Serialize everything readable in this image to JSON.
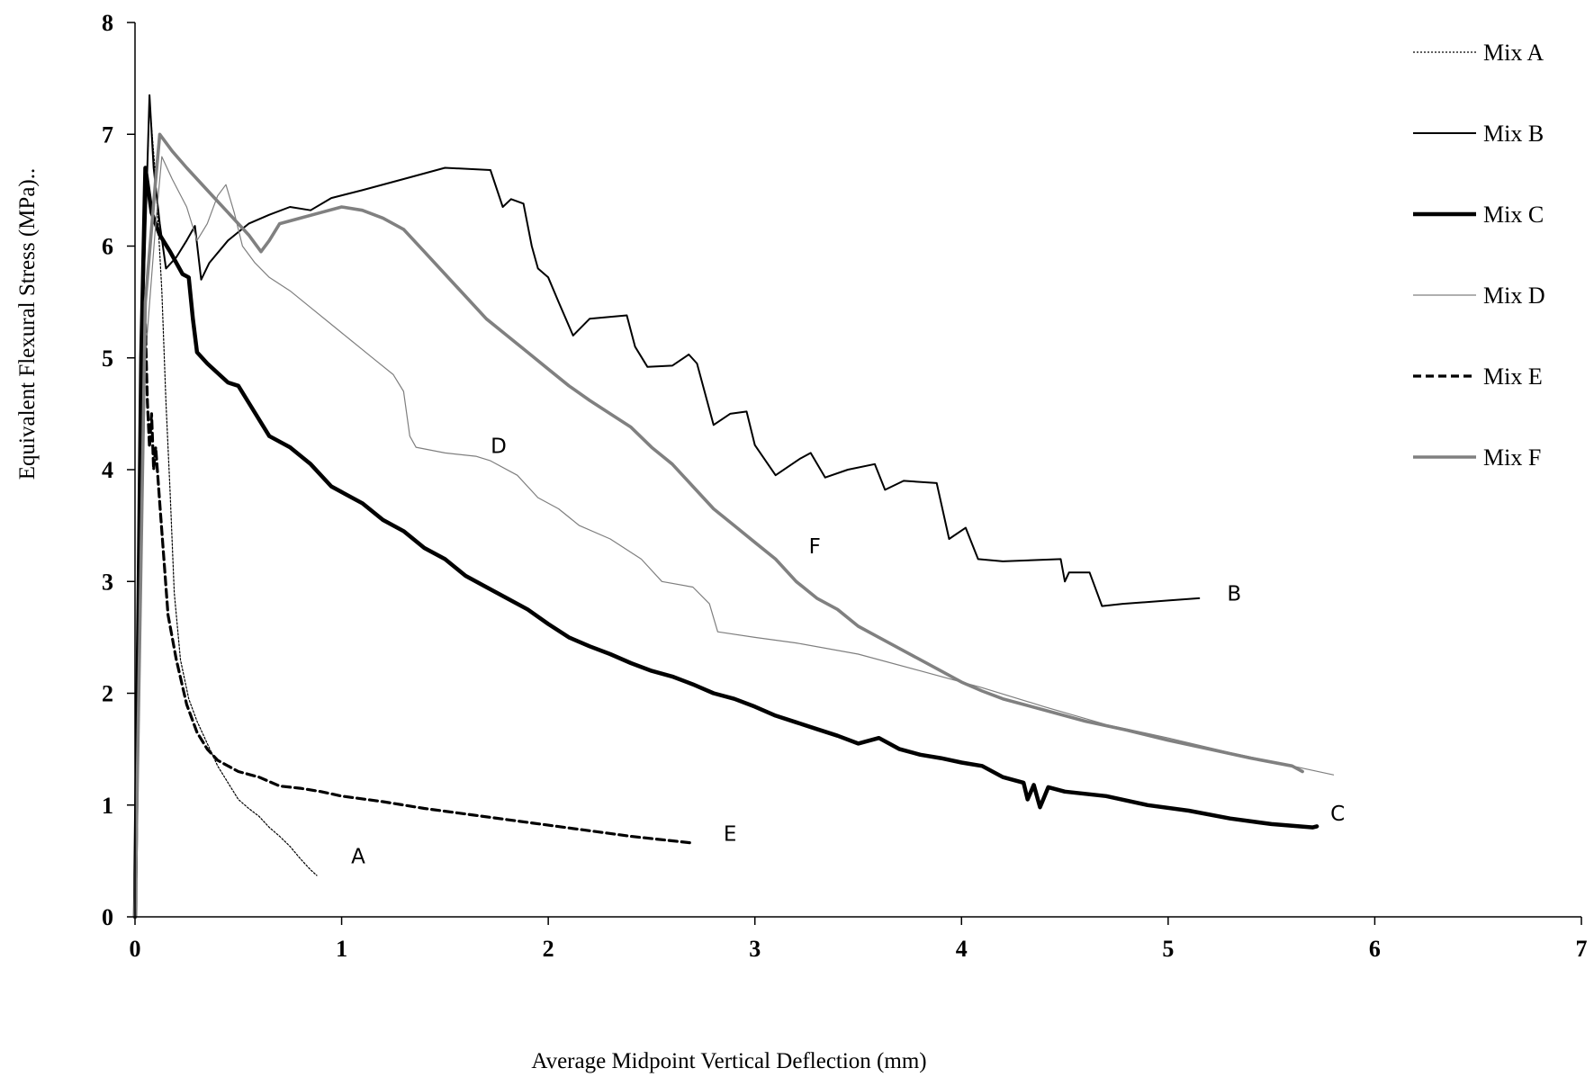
{
  "chart_data": {
    "type": "line",
    "title": "",
    "xlabel": "Average Midpoint Vertical Deflection (mm)",
    "ylabel": "Equivalent Flexural Stress (MPa)..",
    "xlim": [
      0,
      7
    ],
    "ylim": [
      0,
      8
    ],
    "xticks": [
      "0",
      "1",
      "2",
      "3",
      "4",
      "5",
      "6",
      "7"
    ],
    "yticks": [
      "0",
      "1",
      "2",
      "3",
      "4",
      "5",
      "6",
      "7",
      "8"
    ],
    "grid": false,
    "legend_position": "right",
    "series": [
      {
        "name": "Mix A",
        "label": "A",
        "label_at": [
          1.08,
          0.48
        ],
        "style": "dotted",
        "color": "#000000",
        "points": [
          [
            0,
            0
          ],
          [
            0.04,
            5.5
          ],
          [
            0.07,
            7.3
          ],
          [
            0.1,
            6.6
          ],
          [
            0.13,
            5.6
          ],
          [
            0.15,
            4.6
          ],
          [
            0.17,
            3.8
          ],
          [
            0.19,
            2.9
          ],
          [
            0.22,
            2.3
          ],
          [
            0.26,
            1.95
          ],
          [
            0.3,
            1.75
          ],
          [
            0.35,
            1.55
          ],
          [
            0.4,
            1.35
          ],
          [
            0.45,
            1.2
          ],
          [
            0.5,
            1.05
          ],
          [
            0.55,
            0.97
          ],
          [
            0.6,
            0.9
          ],
          [
            0.65,
            0.8
          ],
          [
            0.7,
            0.72
          ],
          [
            0.75,
            0.63
          ],
          [
            0.8,
            0.52
          ],
          [
            0.85,
            0.42
          ],
          [
            0.88,
            0.37
          ]
        ]
      },
      {
        "name": "Mix B",
        "label": "B",
        "label_at": [
          5.32,
          2.83
        ],
        "style": "solid",
        "color": "#000000",
        "points": [
          [
            0,
            0
          ],
          [
            0.04,
            5.5
          ],
          [
            0.07,
            7.35
          ],
          [
            0.09,
            6.7
          ],
          [
            0.12,
            6.2
          ],
          [
            0.15,
            5.8
          ],
          [
            0.2,
            5.9
          ],
          [
            0.25,
            6.05
          ],
          [
            0.29,
            6.18
          ],
          [
            0.32,
            5.7
          ],
          [
            0.36,
            5.85
          ],
          [
            0.45,
            6.05
          ],
          [
            0.55,
            6.2
          ],
          [
            0.65,
            6.28
          ],
          [
            0.75,
            6.35
          ],
          [
            0.85,
            6.32
          ],
          [
            0.95,
            6.43
          ],
          [
            1.1,
            6.5
          ],
          [
            1.3,
            6.6
          ],
          [
            1.5,
            6.7
          ],
          [
            1.72,
            6.68
          ],
          [
            1.78,
            6.35
          ],
          [
            1.82,
            6.42
          ],
          [
            1.88,
            6.38
          ],
          [
            1.92,
            6.0
          ],
          [
            1.95,
            5.8
          ],
          [
            2.0,
            5.72
          ],
          [
            2.05,
            5.5
          ],
          [
            2.12,
            5.2
          ],
          [
            2.2,
            5.35
          ],
          [
            2.38,
            5.38
          ],
          [
            2.42,
            5.1
          ],
          [
            2.48,
            4.92
          ],
          [
            2.6,
            4.93
          ],
          [
            2.68,
            5.03
          ],
          [
            2.72,
            4.95
          ],
          [
            2.8,
            4.4
          ],
          [
            2.88,
            4.5
          ],
          [
            2.96,
            4.52
          ],
          [
            3.0,
            4.22
          ],
          [
            3.1,
            3.95
          ],
          [
            3.22,
            4.1
          ],
          [
            3.27,
            4.15
          ],
          [
            3.34,
            3.93
          ],
          [
            3.45,
            4.0
          ],
          [
            3.58,
            4.05
          ],
          [
            3.63,
            3.82
          ],
          [
            3.72,
            3.9
          ],
          [
            3.88,
            3.88
          ],
          [
            3.94,
            3.38
          ],
          [
            4.02,
            3.48
          ],
          [
            4.08,
            3.2
          ],
          [
            4.2,
            3.18
          ],
          [
            4.48,
            3.2
          ],
          [
            4.5,
            3.0
          ],
          [
            4.52,
            3.08
          ],
          [
            4.62,
            3.08
          ],
          [
            4.68,
            2.78
          ],
          [
            4.78,
            2.8
          ],
          [
            5.0,
            2.83
          ],
          [
            5.15,
            2.85
          ]
        ]
      },
      {
        "name": "Mix C",
        "label": "C",
        "label_at": [
          5.82,
          0.86
        ],
        "style": "solid-thick",
        "color": "#000000",
        "points": [
          [
            0,
            0
          ],
          [
            0.03,
            5.0
          ],
          [
            0.05,
            6.7
          ],
          [
            0.08,
            6.3
          ],
          [
            0.12,
            6.1
          ],
          [
            0.17,
            5.95
          ],
          [
            0.23,
            5.75
          ],
          [
            0.26,
            5.72
          ],
          [
            0.28,
            5.35
          ],
          [
            0.3,
            5.05
          ],
          [
            0.35,
            4.95
          ],
          [
            0.45,
            4.78
          ],
          [
            0.5,
            4.75
          ],
          [
            0.55,
            4.6
          ],
          [
            0.65,
            4.3
          ],
          [
            0.75,
            4.2
          ],
          [
            0.85,
            4.05
          ],
          [
            0.95,
            3.85
          ],
          [
            1.0,
            3.8
          ],
          [
            1.1,
            3.7
          ],
          [
            1.2,
            3.55
          ],
          [
            1.3,
            3.45
          ],
          [
            1.4,
            3.3
          ],
          [
            1.5,
            3.2
          ],
          [
            1.6,
            3.05
          ],
          [
            1.7,
            2.95
          ],
          [
            1.8,
            2.85
          ],
          [
            1.9,
            2.75
          ],
          [
            2.0,
            2.62
          ],
          [
            2.1,
            2.5
          ],
          [
            2.2,
            2.42
          ],
          [
            2.3,
            2.35
          ],
          [
            2.4,
            2.27
          ],
          [
            2.5,
            2.2
          ],
          [
            2.6,
            2.15
          ],
          [
            2.7,
            2.08
          ],
          [
            2.8,
            2.0
          ],
          [
            2.9,
            1.95
          ],
          [
            3.0,
            1.88
          ],
          [
            3.1,
            1.8
          ],
          [
            3.2,
            1.74
          ],
          [
            3.3,
            1.68
          ],
          [
            3.4,
            1.62
          ],
          [
            3.5,
            1.55
          ],
          [
            3.6,
            1.6
          ],
          [
            3.7,
            1.5
          ],
          [
            3.8,
            1.45
          ],
          [
            3.9,
            1.42
          ],
          [
            4.0,
            1.38
          ],
          [
            4.1,
            1.35
          ],
          [
            4.2,
            1.25
          ],
          [
            4.3,
            1.2
          ],
          [
            4.32,
            1.05
          ],
          [
            4.35,
            1.18
          ],
          [
            4.38,
            0.98
          ],
          [
            4.42,
            1.16
          ],
          [
            4.5,
            1.12
          ],
          [
            4.7,
            1.08
          ],
          [
            4.9,
            1.0
          ],
          [
            5.1,
            0.95
          ],
          [
            5.3,
            0.88
          ],
          [
            5.5,
            0.83
          ],
          [
            5.7,
            0.8
          ],
          [
            5.72,
            0.81
          ]
        ]
      },
      {
        "name": "Mix D",
        "label": "D",
        "label_at": [
          1.76,
          4.15
        ],
        "style": "solid-thin",
        "color": "#7f7f7f",
        "points": [
          [
            0,
            0
          ],
          [
            0.05,
            5.0
          ],
          [
            0.1,
            6.2
          ],
          [
            0.13,
            6.8
          ],
          [
            0.18,
            6.6
          ],
          [
            0.25,
            6.35
          ],
          [
            0.3,
            6.05
          ],
          [
            0.35,
            6.2
          ],
          [
            0.4,
            6.45
          ],
          [
            0.44,
            6.55
          ],
          [
            0.48,
            6.3
          ],
          [
            0.52,
            6.0
          ],
          [
            0.58,
            5.85
          ],
          [
            0.65,
            5.72
          ],
          [
            0.75,
            5.6
          ],
          [
            0.85,
            5.45
          ],
          [
            0.95,
            5.3
          ],
          [
            1.05,
            5.15
          ],
          [
            1.15,
            5.0
          ],
          [
            1.25,
            4.85
          ],
          [
            1.3,
            4.7
          ],
          [
            1.33,
            4.3
          ],
          [
            1.36,
            4.2
          ],
          [
            1.5,
            4.15
          ],
          [
            1.65,
            4.12
          ],
          [
            1.72,
            4.08
          ],
          [
            1.85,
            3.95
          ],
          [
            1.95,
            3.75
          ],
          [
            2.05,
            3.65
          ],
          [
            2.15,
            3.5
          ],
          [
            2.3,
            3.38
          ],
          [
            2.45,
            3.2
          ],
          [
            2.55,
            3.0
          ],
          [
            2.7,
            2.95
          ],
          [
            2.78,
            2.8
          ],
          [
            2.82,
            2.55
          ],
          [
            3.0,
            2.5
          ],
          [
            3.2,
            2.45
          ],
          [
            3.5,
            2.35
          ],
          [
            3.8,
            2.2
          ],
          [
            4.1,
            2.05
          ],
          [
            4.4,
            1.88
          ],
          [
            4.7,
            1.72
          ],
          [
            5.0,
            1.6
          ],
          [
            5.3,
            1.47
          ],
          [
            5.55,
            1.37
          ],
          [
            5.8,
            1.27
          ]
        ]
      },
      {
        "name": "Mix E",
        "label": "E",
        "label_at": [
          2.88,
          0.68
        ],
        "style": "dashed",
        "color": "#000000",
        "points": [
          [
            0,
            0
          ],
          [
            0.03,
            4.2
          ],
          [
            0.05,
            5.3
          ],
          [
            0.06,
            4.6
          ],
          [
            0.07,
            4.2
          ],
          [
            0.08,
            4.5
          ],
          [
            0.09,
            4.0
          ],
          [
            0.1,
            4.2
          ],
          [
            0.12,
            3.7
          ],
          [
            0.14,
            3.2
          ],
          [
            0.16,
            2.7
          ],
          [
            0.2,
            2.3
          ],
          [
            0.25,
            1.9
          ],
          [
            0.3,
            1.65
          ],
          [
            0.35,
            1.5
          ],
          [
            0.4,
            1.4
          ],
          [
            0.5,
            1.3
          ],
          [
            0.6,
            1.25
          ],
          [
            0.7,
            1.17
          ],
          [
            0.8,
            1.15
          ],
          [
            0.9,
            1.12
          ],
          [
            1.0,
            1.08
          ],
          [
            1.2,
            1.03
          ],
          [
            1.4,
            0.97
          ],
          [
            1.6,
            0.92
          ],
          [
            1.8,
            0.87
          ],
          [
            2.0,
            0.82
          ],
          [
            2.2,
            0.77
          ],
          [
            2.4,
            0.72
          ],
          [
            2.6,
            0.68
          ],
          [
            2.7,
            0.66
          ]
        ]
      },
      {
        "name": "Mix F",
        "label": "F",
        "label_at": [
          3.29,
          3.25
        ],
        "style": "solid-medium",
        "color": "#808080",
        "points": [
          [
            0,
            0
          ],
          [
            0.05,
            5.5
          ],
          [
            0.1,
            6.6
          ],
          [
            0.12,
            7.0
          ],
          [
            0.18,
            6.85
          ],
          [
            0.25,
            6.7
          ],
          [
            0.35,
            6.5
          ],
          [
            0.45,
            6.3
          ],
          [
            0.55,
            6.1
          ],
          [
            0.61,
            5.95
          ],
          [
            0.65,
            6.05
          ],
          [
            0.7,
            6.2
          ],
          [
            0.8,
            6.25
          ],
          [
            0.9,
            6.3
          ],
          [
            1.0,
            6.35
          ],
          [
            1.1,
            6.32
          ],
          [
            1.2,
            6.25
          ],
          [
            1.3,
            6.15
          ],
          [
            1.4,
            5.95
          ],
          [
            1.5,
            5.75
          ],
          [
            1.6,
            5.55
          ],
          [
            1.7,
            5.35
          ],
          [
            1.8,
            5.2
          ],
          [
            1.9,
            5.05
          ],
          [
            2.0,
            4.9
          ],
          [
            2.1,
            4.75
          ],
          [
            2.2,
            4.62
          ],
          [
            2.3,
            4.5
          ],
          [
            2.4,
            4.38
          ],
          [
            2.5,
            4.2
          ],
          [
            2.6,
            4.05
          ],
          [
            2.7,
            3.85
          ],
          [
            2.8,
            3.65
          ],
          [
            2.9,
            3.5
          ],
          [
            3.0,
            3.35
          ],
          [
            3.1,
            3.2
          ],
          [
            3.2,
            3.0
          ],
          [
            3.3,
            2.85
          ],
          [
            3.4,
            2.75
          ],
          [
            3.5,
            2.6
          ],
          [
            3.6,
            2.5
          ],
          [
            3.7,
            2.4
          ],
          [
            3.8,
            2.3
          ],
          [
            3.9,
            2.2
          ],
          [
            4.0,
            2.1
          ],
          [
            4.1,
            2.02
          ],
          [
            4.2,
            1.95
          ],
          [
            4.4,
            1.85
          ],
          [
            4.6,
            1.75
          ],
          [
            4.8,
            1.67
          ],
          [
            5.0,
            1.58
          ],
          [
            5.2,
            1.5
          ],
          [
            5.4,
            1.42
          ],
          [
            5.6,
            1.35
          ],
          [
            5.65,
            1.3
          ]
        ]
      }
    ]
  }
}
